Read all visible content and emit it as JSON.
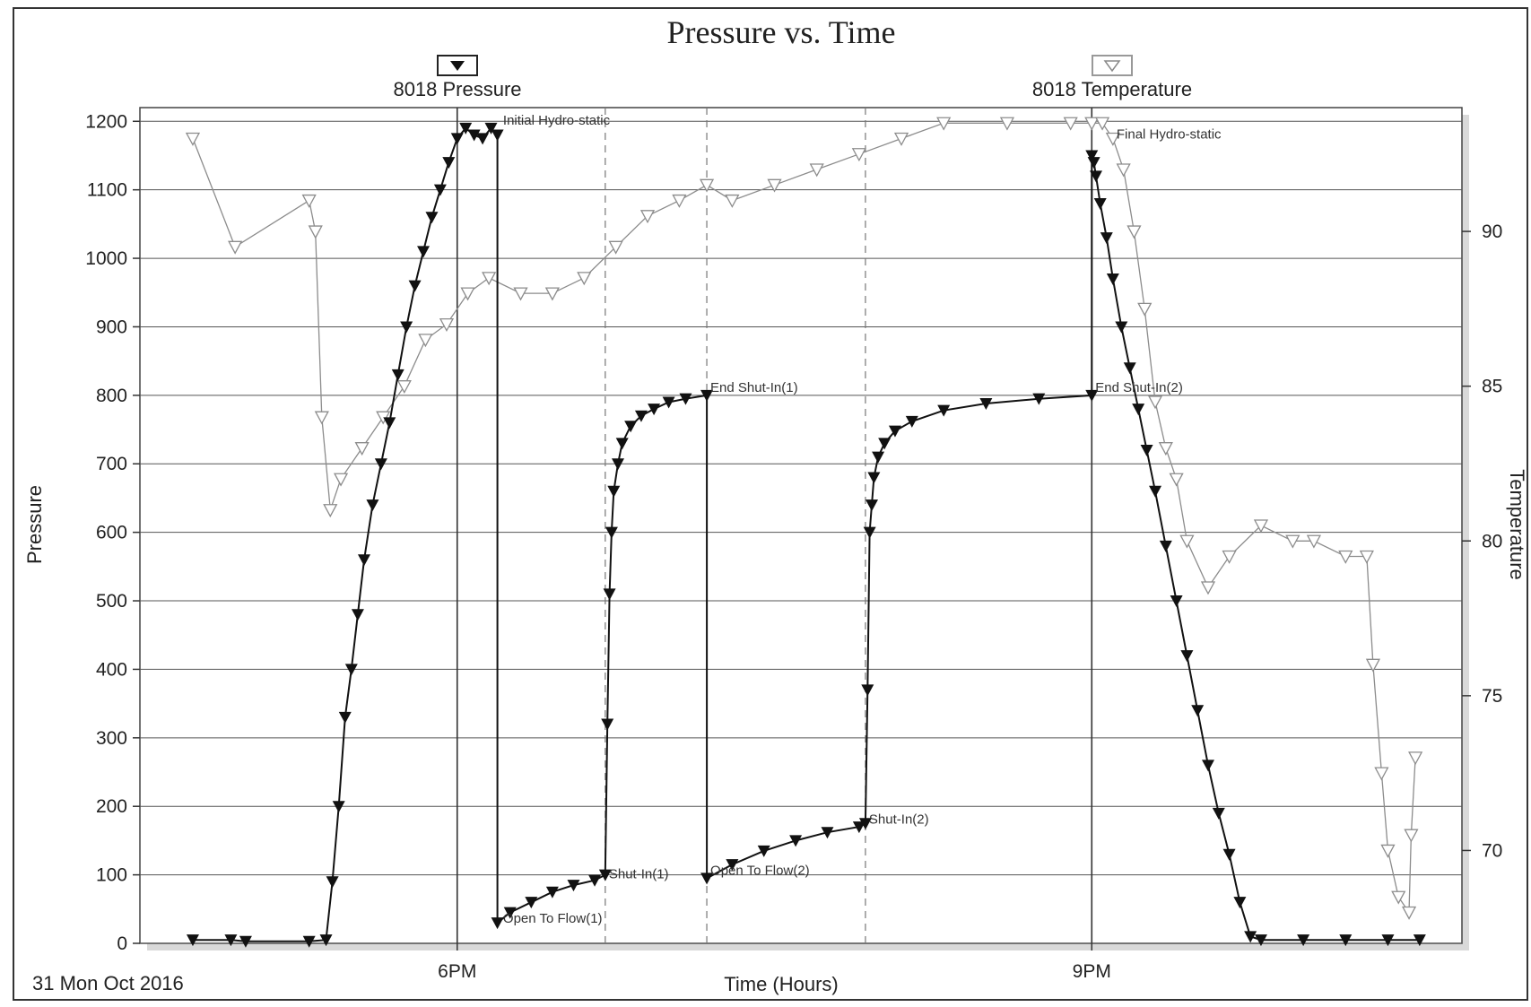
{
  "chart_data": {
    "type": "line",
    "title": "Pressure vs. Time",
    "xlabel": "Time (Hours)",
    "ylabel_left": "Pressure",
    "ylabel_right": "Temperature",
    "date_label": "31 Mon Oct 2016",
    "x_unit": "hours since midnight",
    "xlim": [
      16.5,
      22.75
    ],
    "ylim_left": [
      0,
      1220
    ],
    "ylim_right": [
      67,
      94
    ],
    "grid": true,
    "legend_position": "top",
    "x_ticks": [
      {
        "value": 18,
        "label": "6PM"
      },
      {
        "value": 21,
        "label": "9PM"
      }
    ],
    "y_ticks_left": [
      0,
      100,
      200,
      300,
      400,
      500,
      600,
      700,
      800,
      900,
      1000,
      1100,
      1200
    ],
    "y_ticks_right": [
      70,
      75,
      80,
      85,
      90
    ],
    "event_lines": [
      {
        "x": 18.0,
        "style": "solid"
      },
      {
        "x": 18.7,
        "style": "dashed"
      },
      {
        "x": 19.18,
        "style": "dashed"
      },
      {
        "x": 19.93,
        "style": "dashed"
      },
      {
        "x": 21.0,
        "style": "solid"
      }
    ],
    "annotations": [
      {
        "text": "Initial Hydro-static",
        "x": 18.2,
        "y": 1195,
        "axis": "left"
      },
      {
        "text": "Open To Flow(1)",
        "x": 18.2,
        "y": 30,
        "axis": "left"
      },
      {
        "text": "Shut-In(1)",
        "x": 18.7,
        "y": 95,
        "axis": "left"
      },
      {
        "text": "End Shut-In(1)",
        "x": 19.18,
        "y": 805,
        "axis": "left"
      },
      {
        "text": "Open To Flow(2)",
        "x": 19.18,
        "y": 100,
        "axis": "left"
      },
      {
        "text": "Shut-In(2)",
        "x": 19.93,
        "y": 175,
        "axis": "left"
      },
      {
        "text": "Final Hydro-static",
        "x": 21.1,
        "y": 1175,
        "axis": "left"
      },
      {
        "text": "End Shut-In(2)",
        "x": 21.0,
        "y": 805,
        "axis": "left"
      }
    ],
    "series": [
      {
        "name": "8018 Pressure",
        "axis": "left",
        "color": "#111111",
        "marker": "filled-down-triangle",
        "x": [
          16.75,
          16.93,
          17.0,
          17.3,
          17.38,
          17.41,
          17.44,
          17.47,
          17.5,
          17.53,
          17.56,
          17.6,
          17.64,
          17.68,
          17.72,
          17.76,
          17.8,
          17.84,
          17.88,
          17.92,
          17.96,
          18.0,
          18.04,
          18.08,
          18.12,
          18.16,
          18.19,
          18.19,
          18.25,
          18.35,
          18.45,
          18.55,
          18.65,
          18.7,
          18.71,
          18.72,
          18.73,
          18.74,
          18.76,
          18.78,
          18.82,
          18.87,
          18.93,
          19.0,
          19.08,
          19.18,
          19.18,
          19.3,
          19.45,
          19.6,
          19.75,
          19.9,
          19.93,
          19.94,
          19.95,
          19.96,
          19.97,
          19.99,
          20.02,
          20.07,
          20.15,
          20.3,
          20.5,
          20.75,
          21.0,
          21.0,
          21.01,
          21.02,
          21.04,
          21.07,
          21.1,
          21.14,
          21.18,
          21.22,
          21.26,
          21.3,
          21.35,
          21.4,
          21.45,
          21.5,
          21.55,
          21.6,
          21.65,
          21.7,
          21.75,
          21.8,
          22.0,
          22.2,
          22.4,
          22.55
        ],
        "y": [
          5,
          5,
          3,
          3,
          5,
          90,
          200,
          330,
          400,
          480,
          560,
          640,
          700,
          760,
          830,
          900,
          960,
          1010,
          1060,
          1100,
          1140,
          1175,
          1190,
          1180,
          1175,
          1190,
          1180,
          30,
          45,
          60,
          75,
          85,
          92,
          100,
          320,
          510,
          600,
          660,
          700,
          730,
          755,
          770,
          780,
          790,
          795,
          800,
          95,
          115,
          135,
          150,
          162,
          170,
          175,
          370,
          600,
          640,
          680,
          710,
          730,
          748,
          762,
          778,
          788,
          795,
          800,
          1150,
          1140,
          1120,
          1080,
          1030,
          970,
          900,
          840,
          780,
          720,
          660,
          580,
          500,
          420,
          340,
          260,
          190,
          130,
          60,
          10,
          5,
          5,
          5,
          5,
          5
        ]
      },
      {
        "name": "8018 Temperature",
        "axis": "right",
        "color": "#8c8c8c",
        "marker": "open-down-triangle",
        "x": [
          16.75,
          16.95,
          17.3,
          17.33,
          17.36,
          17.4,
          17.45,
          17.55,
          17.65,
          17.75,
          17.85,
          17.95,
          18.05,
          18.15,
          18.3,
          18.45,
          18.6,
          18.75,
          18.9,
          19.05,
          19.18,
          19.3,
          19.5,
          19.7,
          19.9,
          20.1,
          20.3,
          20.6,
          20.9,
          21.0,
          21.05,
          21.1,
          21.15,
          21.2,
          21.25,
          21.3,
          21.35,
          21.4,
          21.45,
          21.55,
          21.65,
          21.8,
          21.95,
          22.05,
          22.2,
          22.3,
          22.33,
          22.37,
          22.4,
          22.45,
          22.5,
          22.51,
          22.53
        ],
        "y": [
          93,
          89.5,
          91,
          90,
          84,
          81,
          82,
          83,
          84,
          85,
          86.5,
          87,
          88,
          88.5,
          88,
          88,
          88.5,
          89.5,
          90.5,
          91,
          91.5,
          91,
          91.5,
          92,
          92.5,
          93,
          93.5,
          93.5,
          93.5,
          93.5,
          93.5,
          93,
          92,
          90,
          87.5,
          84.5,
          83,
          82,
          80,
          78.5,
          79.5,
          80.5,
          80,
          80,
          79.5,
          79.5,
          76,
          72.5,
          70,
          68.5,
          68,
          70.5,
          73
        ]
      }
    ]
  }
}
